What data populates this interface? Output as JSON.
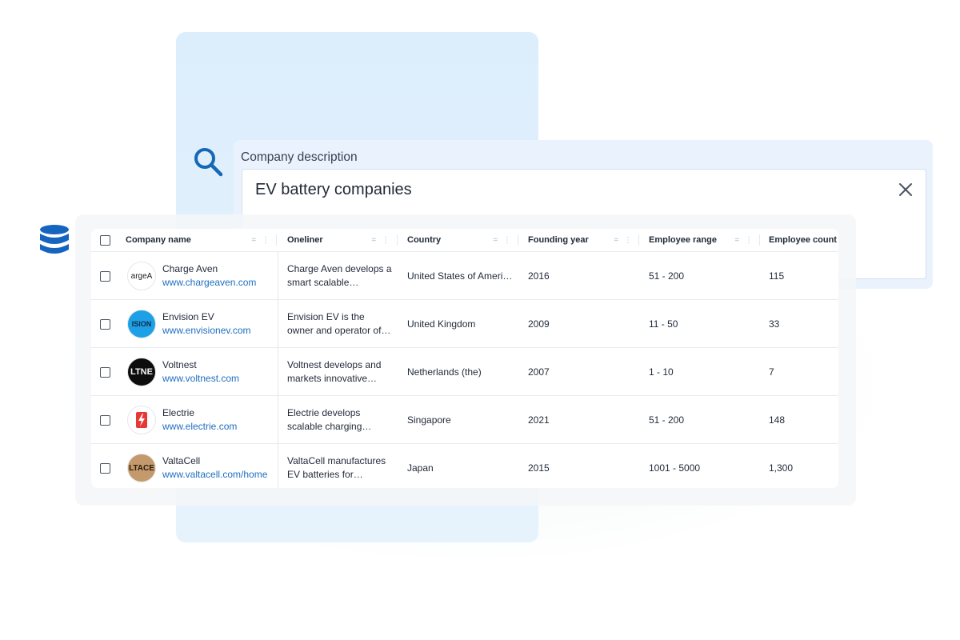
{
  "search": {
    "label": "Company description",
    "value": "EV battery companies"
  },
  "table": {
    "columns": [
      {
        "label": "Company name"
      },
      {
        "label": "Oneliner"
      },
      {
        "label": "Country"
      },
      {
        "label": "Founding year"
      },
      {
        "label": "Employee range"
      },
      {
        "label": "Employee count"
      }
    ],
    "rows": [
      {
        "name": "Charge Aven",
        "url": "www.chargeaven.com",
        "logo_text": "argeA",
        "oneliner_1": "Charge Aven develops a",
        "oneliner_2": "smart scalable…",
        "country": "United States of Ameri…",
        "founded": "2016",
        "range": "51 - 200",
        "count": "115"
      },
      {
        "name": "Envision EV",
        "url": "www.envisionev.com",
        "logo_text": "ISION",
        "oneliner_1": "Envision EV is the",
        "oneliner_2": "owner and operator of…",
        "country": "United Kingdom",
        "founded": "2009",
        "range": "11 - 50",
        "count": "33"
      },
      {
        "name": "Voltnest",
        "url": "www.voltnest.com",
        "logo_text": "LTNE",
        "oneliner_1": "Voltnest develops and",
        "oneliner_2": "markets innovative…",
        "country": "Netherlands (the)",
        "founded": "2007",
        "range": "1 - 10",
        "count": "7"
      },
      {
        "name": "Electrie",
        "url": "www.electrie.com",
        "logo_text": "",
        "oneliner_1": "Electrie develops",
        "oneliner_2": "scalable charging…",
        "country": "Singapore",
        "founded": "2021",
        "range": "51 - 200",
        "count": "148"
      },
      {
        "name": "ValtaCell",
        "url": "www.valtacell.com/home",
        "logo_text": "LTACE",
        "oneliner_1": "ValtaCell manufactures",
        "oneliner_2": "EV batteries for…",
        "country": "Japan",
        "founded": "2015",
        "range": "1001 - 5000",
        "count": "1,300"
      }
    ]
  },
  "colors": {
    "accent": "#1e6fbf",
    "panel": "#dcedfc",
    "db_icon": "#1565c0"
  }
}
